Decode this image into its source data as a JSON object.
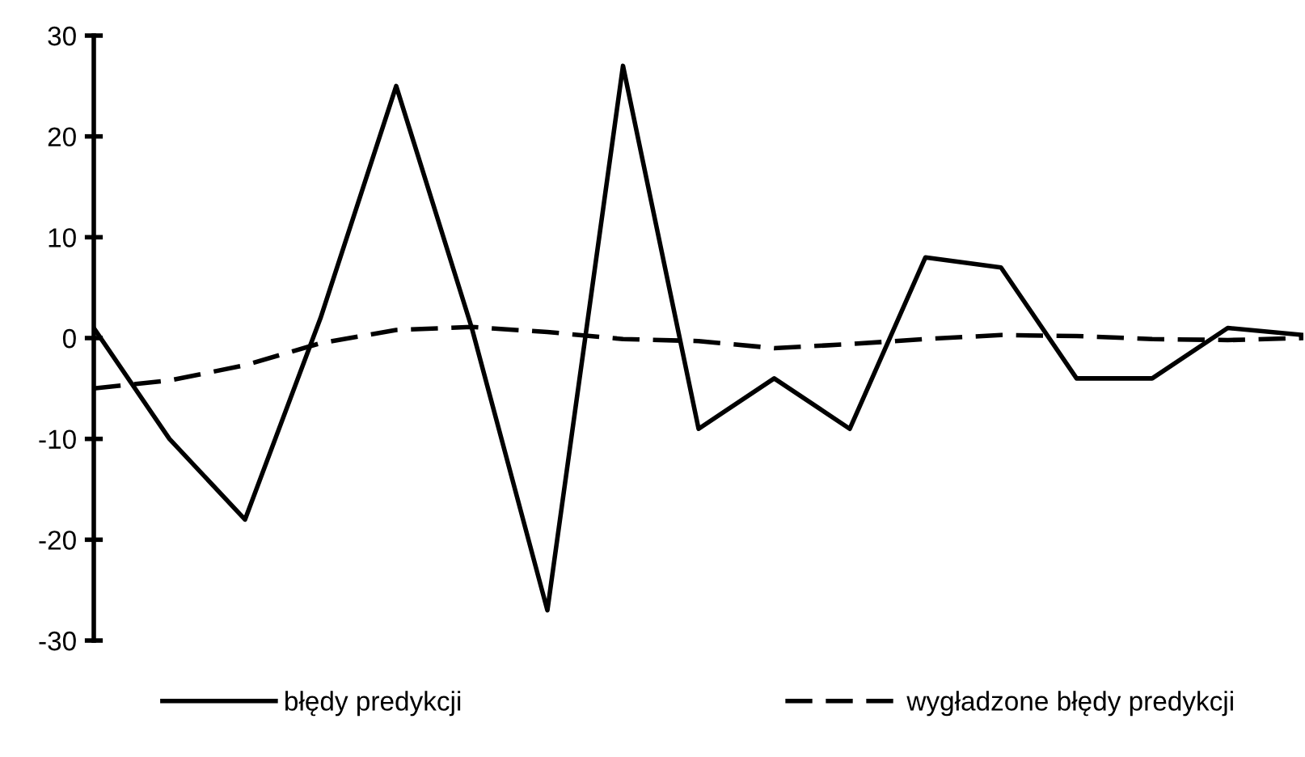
{
  "chart_data": {
    "type": "line",
    "categories": [
      null,
      null,
      null,
      null,
      null,
      null,
      null,
      null,
      null,
      null,
      null,
      null,
      null,
      null,
      null,
      null,
      null
    ],
    "series": [
      {
        "name": "błędy predykcji",
        "color": "#000000",
        "line_style": "solid",
        "values": [
          1,
          -10,
          -18,
          2,
          25,
          1,
          -27,
          27,
          -9,
          -4,
          -9,
          8,
          7,
          -4,
          -4,
          1,
          0.3
        ]
      },
      {
        "name": "wygładzone błędy predykcji",
        "color": "#000000",
        "line_style": "dashed",
        "values": [
          -5,
          -4.2,
          -2.7,
          -0.5,
          0.8,
          1.1,
          0.6,
          -0.1,
          -0.3,
          -1,
          -0.6,
          -0.1,
          0.3,
          0.2,
          -0.1,
          -0.2,
          0
        ]
      }
    ],
    "ylim": [
      -30,
      30
    ],
    "yticks": [
      -30,
      -20,
      -10,
      0,
      10,
      20,
      30
    ],
    "tick_labels": "y",
    "grid": false,
    "legend": "bottom",
    "marker": "none"
  }
}
